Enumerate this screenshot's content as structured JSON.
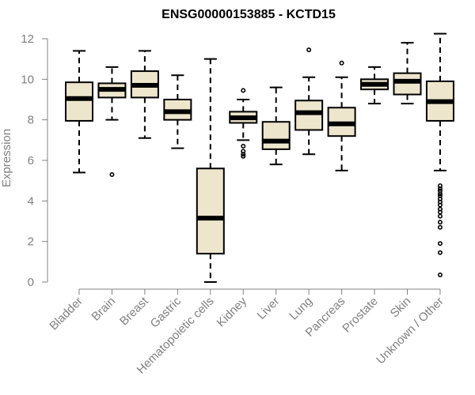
{
  "chart_data": {
    "type": "boxplot",
    "title": "ENSG00000153885 - KCTD15",
    "xlabel": "",
    "ylabel": "Expression",
    "ylim": [
      0,
      12
    ],
    "yticks": [
      "0",
      "2",
      "4",
      "6",
      "8",
      "10",
      "12"
    ],
    "grid": false,
    "legend": "none",
    "box_color": "#ede6cd",
    "categories": [
      "Bladder",
      "Brain",
      "Breast",
      "Gastric",
      "Hematopoietic cells",
      "Kidney",
      "Liver",
      "Lung",
      "Pancreas",
      "Prostate",
      "Skin",
      "Unknown / Other"
    ],
    "boxes": [
      {
        "min": 5.4,
        "q1": 7.95,
        "median": 9.05,
        "q3": 9.85,
        "max": 11.4,
        "outliers": []
      },
      {
        "min": 8.0,
        "q1": 9.1,
        "median": 9.5,
        "q3": 9.8,
        "max": 10.6,
        "outliers": [
          5.3
        ]
      },
      {
        "min": 7.1,
        "q1": 9.1,
        "median": 9.7,
        "q3": 10.4,
        "max": 11.4,
        "outliers": []
      },
      {
        "min": 6.6,
        "q1": 8.0,
        "median": 8.4,
        "q3": 9.0,
        "max": 10.2,
        "outliers": []
      },
      {
        "min": 0.0,
        "q1": 1.4,
        "median": 3.15,
        "q3": 5.6,
        "max": 11.0,
        "outliers": []
      },
      {
        "min": 7.0,
        "q1": 7.85,
        "median": 8.1,
        "q3": 8.4,
        "max": 9.0,
        "outliers": [
          9.45,
          6.7,
          6.45,
          6.3,
          6.2
        ]
      },
      {
        "min": 5.8,
        "q1": 6.55,
        "median": 6.95,
        "q3": 7.9,
        "max": 9.6,
        "outliers": []
      },
      {
        "min": 6.3,
        "q1": 7.5,
        "median": 8.35,
        "q3": 8.95,
        "max": 10.1,
        "outliers": [
          11.45
        ]
      },
      {
        "min": 5.5,
        "q1": 7.2,
        "median": 7.8,
        "q3": 8.6,
        "max": 10.1,
        "outliers": [
          10.8
        ]
      },
      {
        "min": 8.8,
        "q1": 9.5,
        "median": 9.75,
        "q3": 10.0,
        "max": 10.6,
        "outliers": []
      },
      {
        "min": 8.8,
        "q1": 9.25,
        "median": 9.9,
        "q3": 10.3,
        "max": 11.8,
        "outliers": []
      },
      {
        "min": 5.5,
        "q1": 7.95,
        "median": 8.9,
        "q3": 9.9,
        "max": 12.25,
        "outliers": [
          4.75,
          4.6,
          4.5,
          4.35,
          4.25,
          4.1,
          3.95,
          3.8,
          3.6,
          3.45,
          3.25,
          2.95,
          2.7,
          1.9,
          1.45,
          0.35
        ]
      }
    ]
  }
}
